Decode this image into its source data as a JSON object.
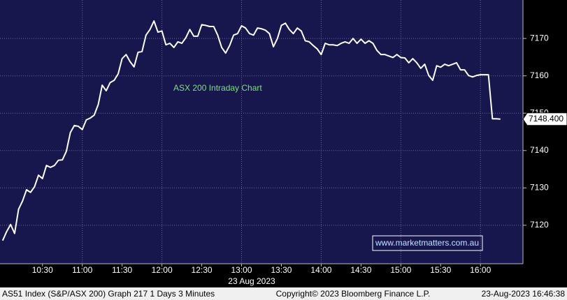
{
  "chart_data": {
    "type": "line",
    "title": "ASX 200 Intraday Chart",
    "watermark": "www.marketmatters.com.au",
    "date_label": "23 Aug 2023",
    "last_price_label": "7148.400",
    "footer_left": "AS51 Index (S&P/ASX 200) Graph 217 1 Days 3 Minutes",
    "footer_center": "Copyright© 2023 Bloomberg Finance L.P.",
    "footer_right": "23-Aug-2023 16:46:38",
    "x": [
      600,
      603,
      606,
      609,
      612,
      615,
      618,
      621,
      624,
      627,
      630,
      633,
      636,
      639,
      642,
      645,
      648,
      651,
      654,
      657,
      660,
      663,
      666,
      669,
      672,
      675,
      678,
      681,
      684,
      687,
      690,
      693,
      696,
      699,
      702,
      705,
      708,
      711,
      714,
      717,
      720,
      723,
      726,
      729,
      732,
      735,
      738,
      741,
      744,
      747,
      750,
      753,
      756,
      759,
      762,
      765,
      768,
      771,
      774,
      777,
      780,
      783,
      786,
      789,
      792,
      795,
      798,
      801,
      804,
      807,
      810,
      813,
      816,
      819,
      822,
      825,
      828,
      831,
      834,
      837,
      840,
      843,
      846,
      849,
      852,
      855,
      858,
      861,
      864,
      867,
      870,
      873,
      876,
      879,
      882,
      885,
      888,
      891,
      894,
      897,
      900,
      903,
      906,
      909,
      912,
      915,
      918,
      921,
      924,
      927,
      930,
      933,
      936,
      939,
      942,
      945,
      948,
      951,
      954,
      957,
      960,
      963,
      966,
      969,
      972,
      975
    ],
    "series": [
      {
        "name": "AS51 Index",
        "color": "#ffffff",
        "values": [
          7115.9,
          7118.3,
          7120.2,
          7117.8,
          7124.3,
          7126.5,
          7129.5,
          7128.8,
          7130.3,
          7133.4,
          7132.5,
          7136,
          7135.5,
          7136,
          7137.4,
          7137.5,
          7139.8,
          7144.8,
          7146.7,
          7146.5,
          7145.6,
          7148.2,
          7148.7,
          7149.5,
          7152.3,
          7157.5,
          7156,
          7158.2,
          7158.8,
          7160.5,
          7164.6,
          7165.7,
          7163.8,
          7162.4,
          7166.3,
          7166.5,
          7170.9,
          7172.4,
          7174.7,
          7171.7,
          7172,
          7168.3,
          7168.7,
          7167.6,
          7169.1,
          7168.7,
          7170.2,
          7172.4,
          7170.6,
          7170.6,
          7173.7,
          7173.5,
          7173.2,
          7173.2,
          7170.9,
          7167.6,
          7166.1,
          7168.1,
          7170.9,
          7171.3,
          7173.4,
          7172.8,
          7171.3,
          7170.9,
          7172.8,
          7172.6,
          7172.2,
          7171.3,
          7167.8,
          7170,
          7173.5,
          7174.1,
          7172.4,
          7171.3,
          7172.8,
          7172,
          7169.4,
          7169.1,
          7168.1,
          7167.2,
          7165.7,
          7168.7,
          7168.3,
          7168.3,
          7168.1,
          7168.7,
          7169.1,
          7168.7,
          7170,
          7168.7,
          7169.8,
          7168.7,
          7169.4,
          7168.7,
          7166.8,
          7165.7,
          7165.7,
          7165.3,
          7164.9,
          7165.7,
          7164.9,
          7164.8,
          7163.5,
          7164.6,
          7163.5,
          7162,
          7163.1,
          7160.1,
          7158.8,
          7162.7,
          7162.3,
          7163.1,
          7162.7,
          7163.1,
          7163.5,
          7161.6,
          7161.6,
          7160.1,
          7159.7,
          7160.1,
          7160.3,
          7160.3,
          7160.3,
          7148.5,
          7148.5,
          7148.4
        ]
      }
    ],
    "xlim": [
      598,
      992
    ],
    "xticks": [
      {
        "value": 630,
        "label": "10:30"
      },
      {
        "value": 660,
        "label": "11:00"
      },
      {
        "value": 690,
        "label": "11:30"
      },
      {
        "value": 720,
        "label": "12:00"
      },
      {
        "value": 750,
        "label": "12:30"
      },
      {
        "value": 780,
        "label": "13:00"
      },
      {
        "value": 810,
        "label": "13:30"
      },
      {
        "value": 840,
        "label": "14:00"
      },
      {
        "value": 870,
        "label": "14:30"
      },
      {
        "value": 900,
        "label": "15:00"
      },
      {
        "value": 930,
        "label": "15:30"
      },
      {
        "value": 960,
        "label": "16:00"
      }
    ],
    "xgridlines": [
      660,
      720,
      780,
      840,
      900,
      960
    ],
    "ylim": [
      7109.7,
      7180.3
    ],
    "yticks": [
      7120,
      7130,
      7140,
      7150,
      7160,
      7170
    ],
    "grid": true,
    "y_axis_side": "right"
  }
}
